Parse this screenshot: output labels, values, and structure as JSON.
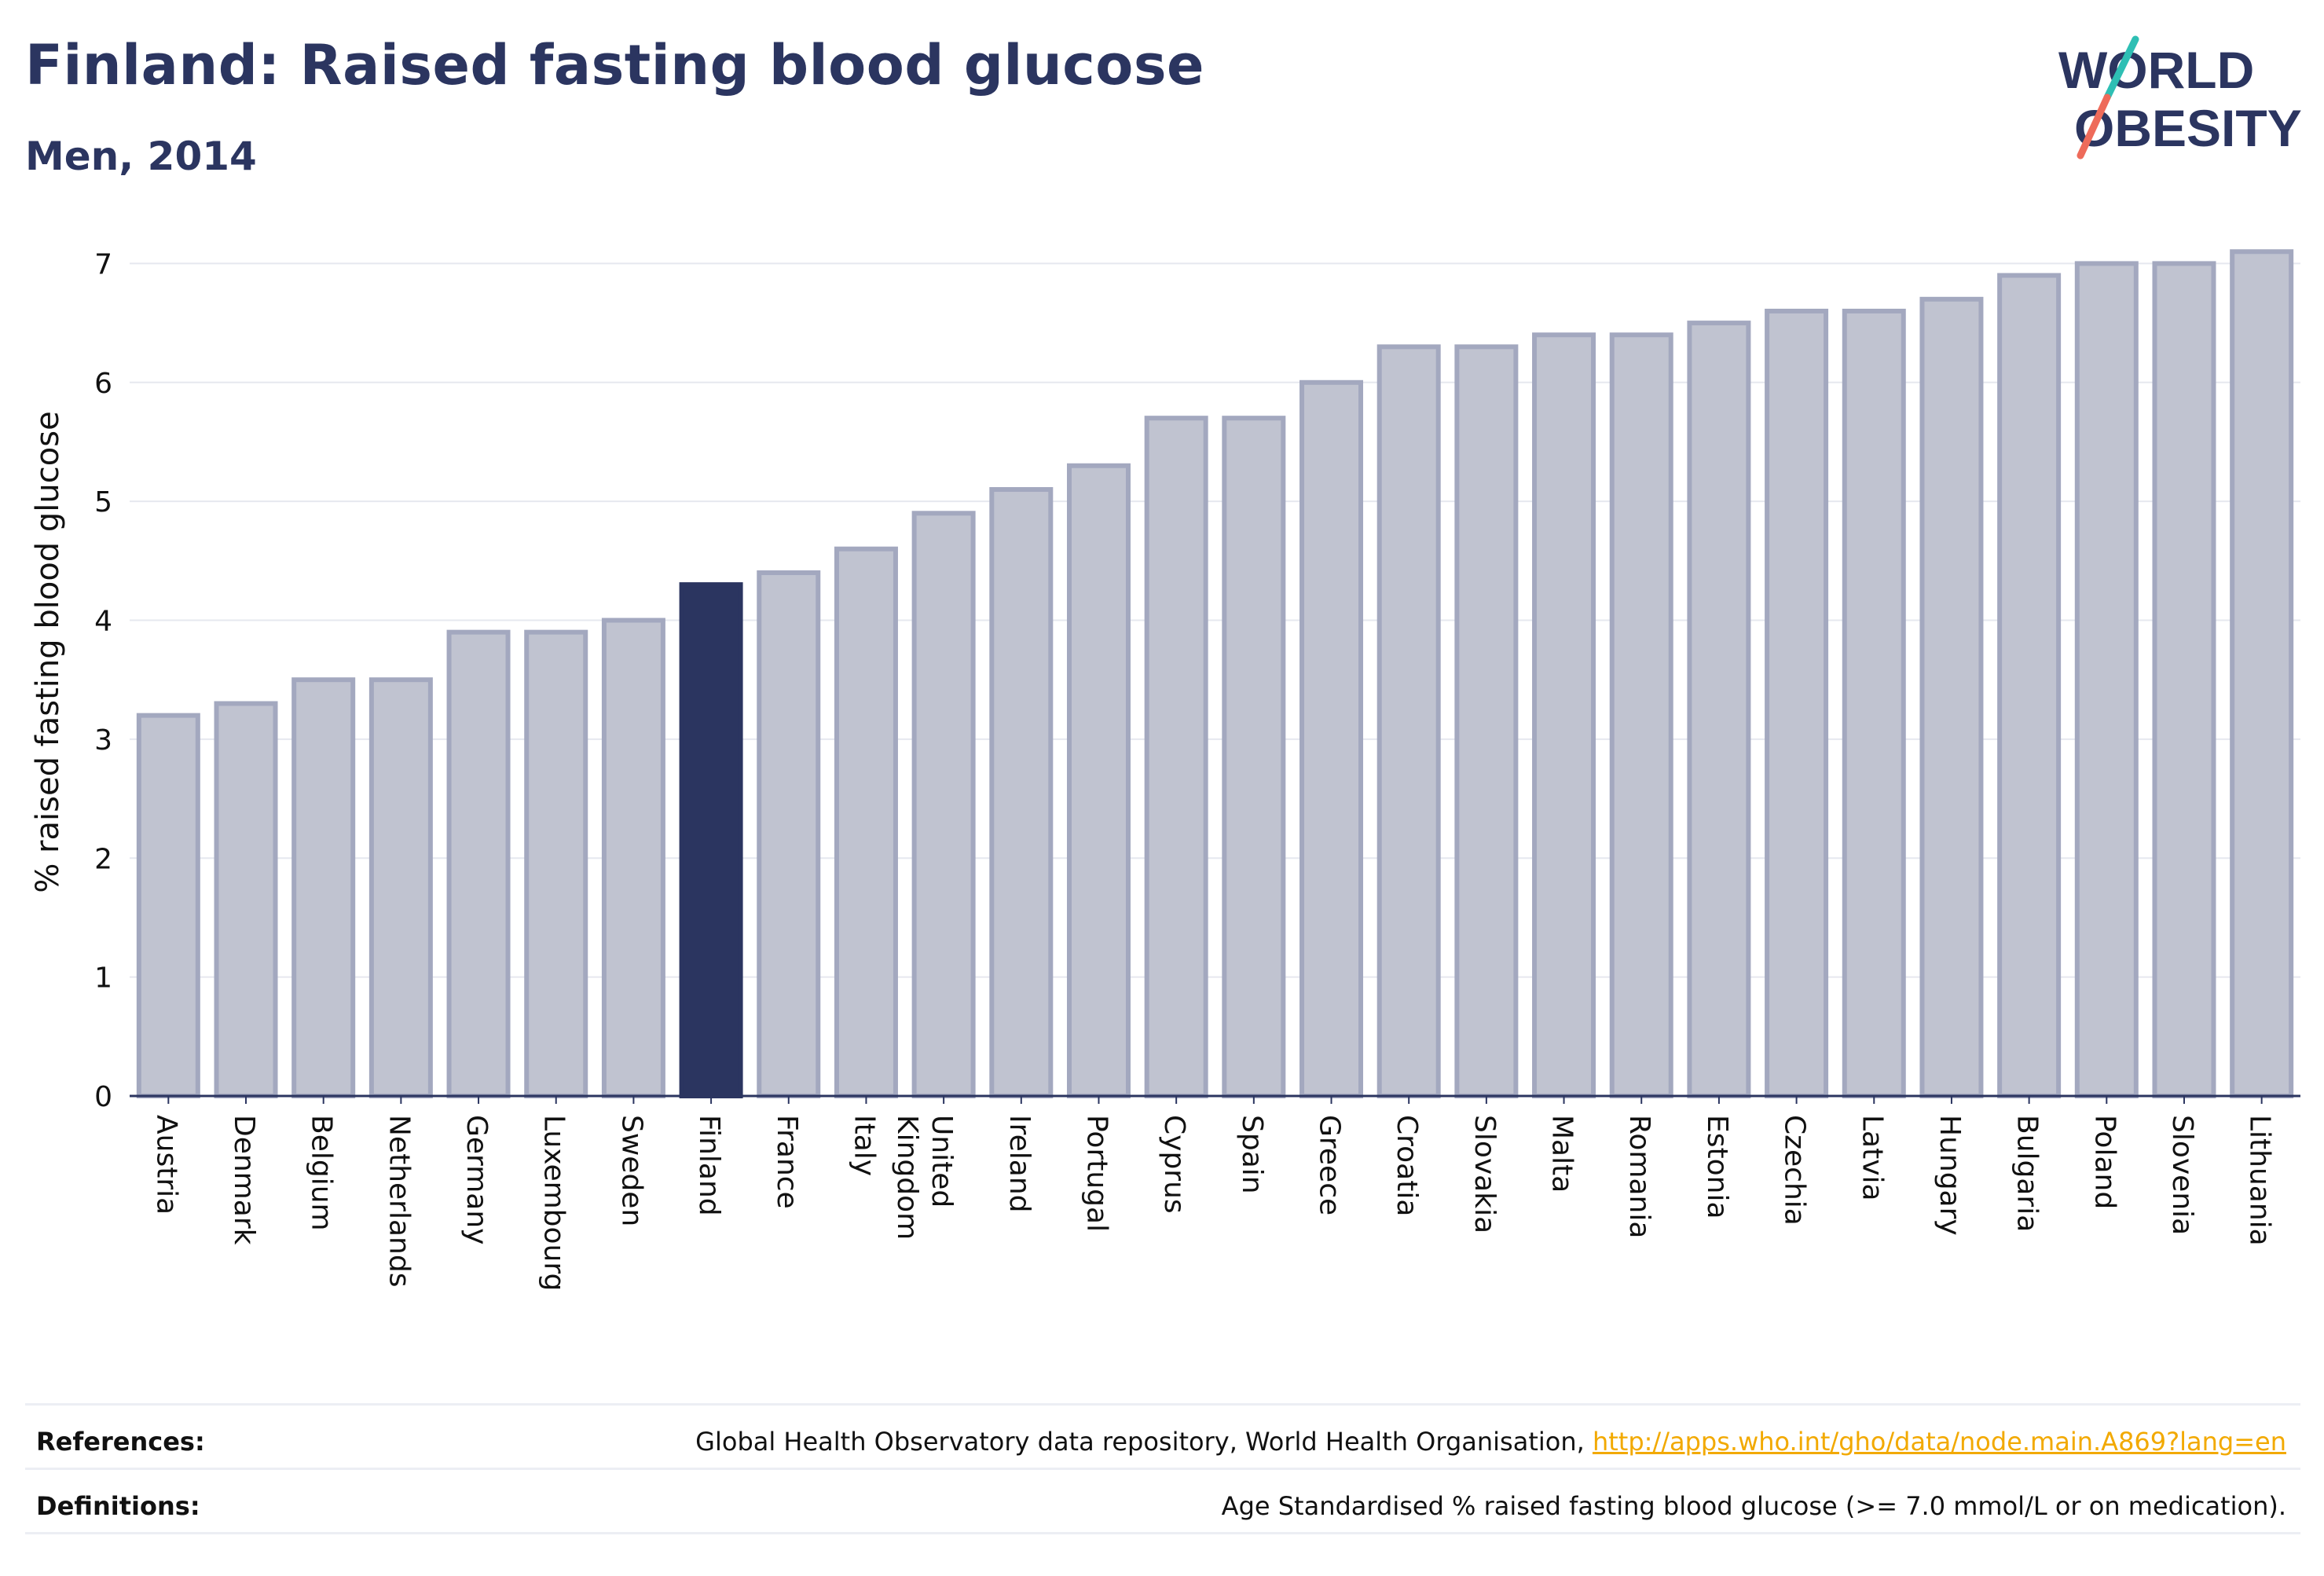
{
  "title": "Finland: Raised fasting blood glucose",
  "subtitle": "Men, 2014",
  "logo": {
    "line1": "WORLD",
    "line2": "OBESITY"
  },
  "colors": {
    "highlight": "#2b3560",
    "bar_fill": "#c0c3d0",
    "bar_stroke": "#a3a8bf",
    "axis": "#2b3560",
    "grid": "#e6e8ef",
    "logo_text": "#2b3560",
    "logo_teal": "#2ebfb4",
    "logo_coral": "#ee6b5a",
    "link": "#f2a900"
  },
  "chart_data": {
    "type": "bar",
    "title": "Finland: Raised fasting blood glucose",
    "subtitle": "Men, 2014",
    "xlabel": "",
    "ylabel": "% raised fasting blood glucose",
    "ylim": [
      0,
      7.3
    ],
    "yticks": [
      0,
      1,
      2,
      3,
      4,
      5,
      6,
      7
    ],
    "grid": true,
    "highlight": "Finland",
    "categories": [
      "Austria",
      "Denmark",
      "Belgium",
      "Netherlands",
      "Germany",
      "Luxembourg",
      "Sweden",
      "Finland",
      "France",
      "Italy",
      "United Kingdom",
      "Ireland",
      "Portugal",
      "Cyprus",
      "Spain",
      "Greece",
      "Croatia",
      "Slovakia",
      "Malta",
      "Romania",
      "Estonia",
      "Czechia",
      "Latvia",
      "Hungary",
      "Bulgaria",
      "Poland",
      "Slovenia",
      "Lithuania"
    ],
    "values": [
      3.2,
      3.3,
      3.5,
      3.5,
      3.9,
      3.9,
      4.0,
      4.3,
      4.4,
      4.6,
      4.9,
      5.1,
      5.3,
      5.7,
      5.7,
      6.0,
      6.3,
      6.3,
      6.4,
      6.4,
      6.5,
      6.6,
      6.6,
      6.7,
      6.9,
      7.0,
      7.0,
      7.1
    ]
  },
  "footer": {
    "references_label": "References:",
    "references_text": "Global Health Observatory data repository, World Health Organisation, ",
    "references_link": "http://apps.who.int/gho/data/node.main.A869?lang=en",
    "definitions_label": "Definitions:",
    "definitions_text": "Age Standardised % raised fasting blood glucose (>= 7.0 mmol/L or on medication)."
  }
}
